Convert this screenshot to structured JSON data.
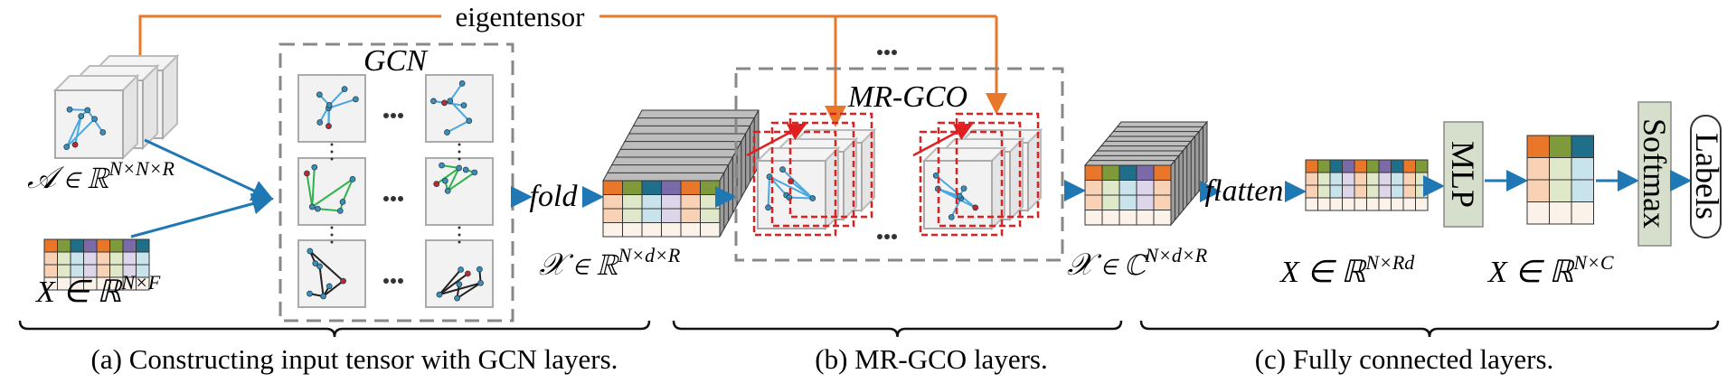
{
  "eigentensor": "eigentensor",
  "gcn": "GCN",
  "mrgco": "MR-GCO",
  "fold": "fold",
  "flatten": "flatten",
  "mlp": "MLP",
  "softmax": "Softmax",
  "labels": "Labels",
  "math": {
    "adjacency": {
      "base": "𝒜 ∈ ℝ",
      "sup": "N×N×R"
    },
    "features": {
      "base": "X ∈ ℝ",
      "sup": "N×F"
    },
    "real_tensor": {
      "base": "𝒳 ∈ ℝ",
      "sup": "N×d×R"
    },
    "complex_tensor": {
      "base": "𝒳 ∈ ℂ",
      "sup": "N×d×R"
    },
    "flat": {
      "base": "X ∈ ℝ",
      "sup": "N×Rd"
    },
    "output": {
      "base": "X ∈ ℝ",
      "sup": "N×C"
    }
  },
  "captions": [
    "(a) Constructing input tensor with GCN layers.",
    "(b) MR-GCO layers.",
    "(c) Fully connected layers."
  ]
}
